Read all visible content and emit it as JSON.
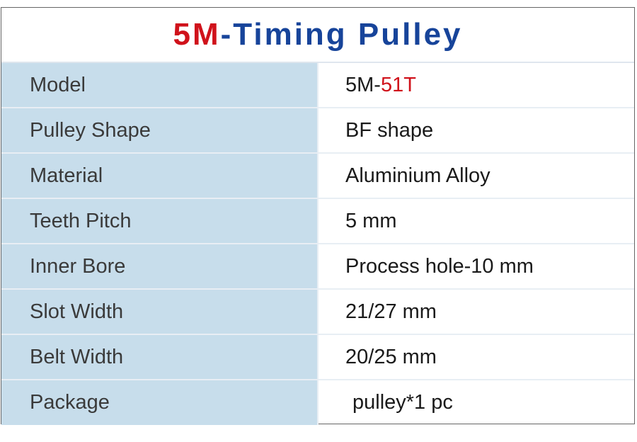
{
  "header": {
    "title": [
      "5M",
      "-Timing Pulley"
    ]
  },
  "table": {
    "rows": [
      {
        "label": "Model",
        "value": [
          "5M-",
          "51T"
        ]
      },
      {
        "label": "Pulley Shape",
        "value": [
          "BF shape"
        ]
      },
      {
        "label": "Material",
        "value": [
          "Aluminium Alloy"
        ]
      },
      {
        "label": "Teeth Pitch",
        "value": [
          "5 mm"
        ]
      },
      {
        "label": "Inner Bore",
        "value": [
          "Process hole-10 mm"
        ]
      },
      {
        "label": "Slot Width",
        "value": [
          "21/27 mm"
        ]
      },
      {
        "label": "Belt Width",
        "value": [
          "20/25 mm"
        ]
      },
      {
        "label": "Package",
        "value": [
          "pulley*1 pc"
        ]
      }
    ]
  }
}
